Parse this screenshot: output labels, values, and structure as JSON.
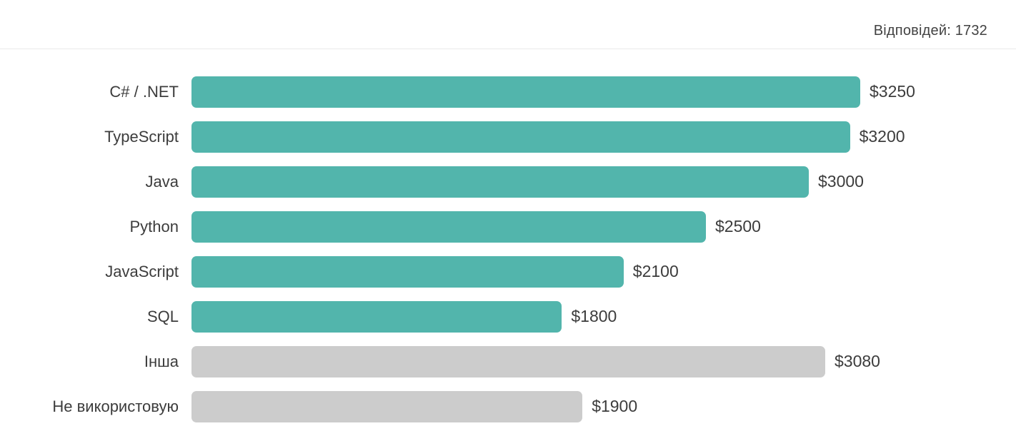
{
  "header": {
    "responses_label": "Відповідей: 1732"
  },
  "colors": {
    "bar_active": "#52b5ac",
    "bar_inactive": "#cccccc",
    "text": "#3c3c3c",
    "divider": "#e9e9e9",
    "background": "#ffffff"
  },
  "chart_data": {
    "type": "bar",
    "orientation": "horizontal",
    "title": "",
    "xlabel": "",
    "ylabel": "",
    "grid": false,
    "legend": "none",
    "xlim": [
      0,
      3250
    ],
    "unit": "$",
    "categories": [
      "C# / .NET",
      "TypeScript",
      "Java",
      "Python",
      "JavaScript",
      "SQL",
      "Інша",
      "Не використовую"
    ],
    "values": [
      3250,
      3200,
      3000,
      2500,
      2100,
      1800,
      3080,
      1900
    ],
    "value_labels": [
      "$3250",
      "$3200",
      "$3000",
      "$2500",
      "$2100",
      "$1800",
      "$3080",
      "$1900"
    ],
    "bar_colors": [
      "#52b5ac",
      "#52b5ac",
      "#52b5ac",
      "#52b5ac",
      "#52b5ac",
      "#52b5ac",
      "#cccccc",
      "#cccccc"
    ]
  }
}
